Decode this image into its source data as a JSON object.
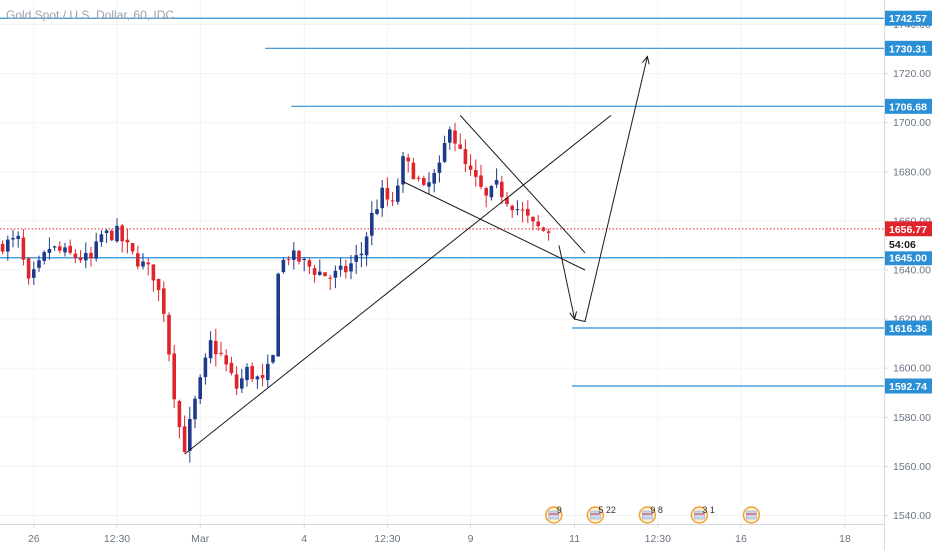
{
  "header": {
    "symbol_line": "Gold Spot / U.S. Dollar, 60, IDC"
  },
  "colors": {
    "up": "#1e3a8a",
    "down": "#e0242b",
    "hline": "#2b8fd6",
    "price_line": "#e0242b",
    "grid": "#f2f3f5",
    "drawing": "#1a1a1a",
    "axis_border": "#d7dbe0"
  },
  "chart_data": {
    "type": "candlestick",
    "title": "Gold Spot / U.S. Dollar, 60, IDC",
    "ylim": [
      1530,
      1750
    ],
    "y_ticks": [
      1540,
      1560,
      1580,
      1600,
      1620,
      1640,
      1660,
      1680,
      1700,
      1720,
      1740
    ],
    "y_tick_labels": [
      "1540.00",
      "1560.00",
      "1580.00",
      "1600.00",
      "1620.00",
      "1640.00",
      "1660.00",
      "1680.00",
      "1700.00",
      "1720.00",
      "1740.00"
    ],
    "x_tick_labels": [
      "26",
      "12:30",
      "Mar",
      "4",
      "12:30",
      "9",
      "11",
      "12:30",
      "16",
      "18"
    ],
    "x_tick_bar_index": [
      6,
      22,
      38,
      58,
      74,
      90,
      110,
      126,
      142,
      162
    ],
    "bar_count": 170,
    "last_bar_index": 105,
    "current_price": 1656.77,
    "countdown": "54:06",
    "series_anchors": [
      [
        0,
        1650
      ],
      [
        4,
        1652
      ],
      [
        6,
        1634
      ],
      [
        10,
        1649
      ],
      [
        14,
        1646
      ],
      [
        18,
        1644
      ],
      [
        20,
        1654
      ],
      [
        23,
        1655
      ],
      [
        26,
        1646
      ],
      [
        30,
        1638
      ],
      [
        32,
        1624
      ],
      [
        34,
        1590
      ],
      [
        35,
        1576
      ],
      [
        36,
        1568
      ],
      [
        38,
        1586
      ],
      [
        41,
        1610
      ],
      [
        43,
        1605
      ],
      [
        46,
        1592
      ],
      [
        48,
        1599
      ],
      [
        51,
        1594
      ],
      [
        53,
        1604
      ],
      [
        54,
        1641
      ],
      [
        56,
        1646
      ],
      [
        58,
        1644
      ],
      [
        61,
        1640
      ],
      [
        64,
        1637
      ],
      [
        67,
        1640
      ],
      [
        70,
        1647
      ],
      [
        72,
        1662
      ],
      [
        74,
        1671
      ],
      [
        76,
        1666
      ],
      [
        78,
        1684
      ],
      [
        80,
        1680
      ],
      [
        82,
        1672
      ],
      [
        85,
        1681
      ],
      [
        87,
        1700
      ],
      [
        88,
        1693
      ],
      [
        90,
        1682
      ],
      [
        92,
        1676
      ],
      [
        94,
        1669
      ],
      [
        96,
        1674
      ],
      [
        98,
        1669
      ],
      [
        101,
        1663
      ],
      [
        103,
        1658
      ],
      [
        105,
        1656
      ]
    ],
    "horizontal_levels": [
      {
        "price": 1742.57,
        "label": "1742.57",
        "from_bar": 0
      },
      {
        "price": 1730.31,
        "label": "1730.31",
        "from_bar": 51
      },
      {
        "price": 1706.68,
        "label": "1706.68",
        "from_bar": 56
      },
      {
        "price": 1645.0,
        "label": "1645.00",
        "from_bar": 0
      },
      {
        "price": 1616.36,
        "label": "1616.36",
        "from_bar": 110
      },
      {
        "price": 1592.74,
        "label": "1592.74",
        "from_bar": 110
      }
    ],
    "trend_lines": [
      {
        "from": [
          35,
          1565
        ],
        "to": [
          117,
          1703
        ]
      },
      {
        "from": [
          88,
          1703
        ],
        "to": [
          112,
          1647
        ]
      },
      {
        "from": [
          77,
          1676
        ],
        "to": [
          112,
          1640
        ]
      }
    ],
    "projection_path": [
      [
        107,
        1650
      ],
      [
        110,
        1620
      ],
      [
        112,
        1619
      ],
      [
        124,
        1727
      ]
    ],
    "event_markers": [
      {
        "bar": 106,
        "label": "9"
      },
      {
        "bar": 114,
        "label": "5  22"
      },
      {
        "bar": 124,
        "label": "9 8"
      },
      {
        "bar": 134,
        "label": "3 1"
      },
      {
        "bar": 144,
        "label": ""
      }
    ]
  }
}
